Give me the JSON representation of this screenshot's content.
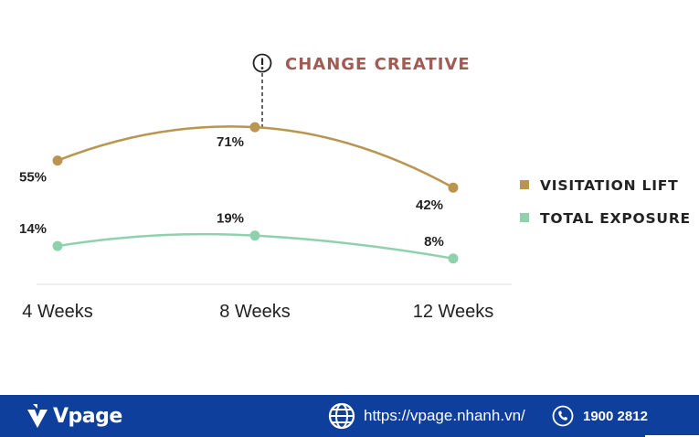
{
  "chart_data": {
    "type": "line",
    "categories": [
      "4 Weeks",
      "8 Weeks",
      "12 Weeks"
    ],
    "series": [
      {
        "name": "VISITATION LIFT",
        "values": [
          55,
          71,
          42
        ],
        "labels": [
          "55%",
          "71%",
          "42%"
        ],
        "color": "#b99550"
      },
      {
        "name": "TOTAL EXPOSURE",
        "values": [
          14,
          19,
          8
        ],
        "labels": [
          "14%",
          "19%",
          "8%"
        ],
        "color": "#8fd1ad"
      }
    ],
    "annotation": {
      "text": "CHANGE CREATIVE",
      "at_category": "8 Weeks",
      "icon": "exclamation-circle-icon",
      "color": "#a25a55"
    },
    "legend": "right",
    "grid": false
  },
  "footer": {
    "brand": "Vpage",
    "website": "https://vpage.nhanh.vn/",
    "phone": "1900 2812",
    "background": "#0f3f9c",
    "icons": [
      "vpage-logo-icon",
      "globe-icon",
      "phone-icon"
    ]
  }
}
